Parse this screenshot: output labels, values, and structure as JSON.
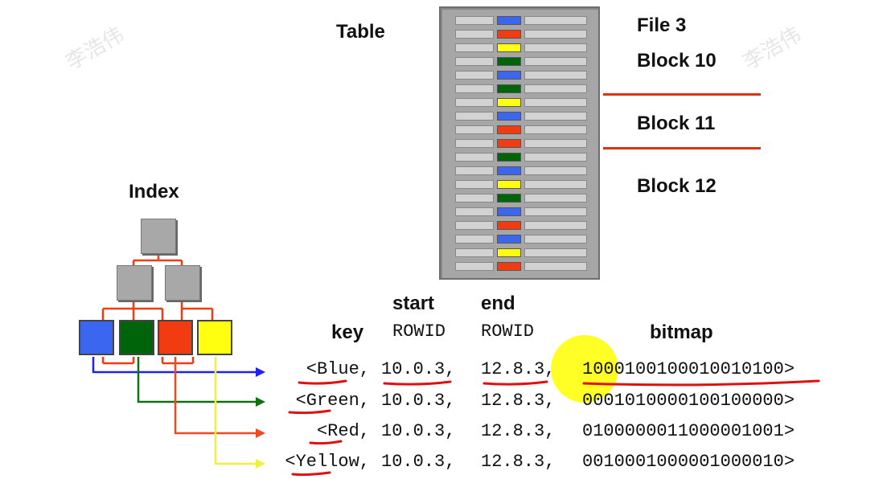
{
  "watermarks": [
    "李浩伟",
    "李浩伟"
  ],
  "labels": {
    "table": "Table",
    "index": "Index",
    "file": "File 3",
    "block10": "Block 10",
    "block11": "Block 11",
    "block12": "Block 12"
  },
  "headers": {
    "key": "key",
    "start_top": "start",
    "start_bottom": "ROWID",
    "end_top": "end",
    "end_bottom": "ROWID",
    "bitmap": "bitmap"
  },
  "colors": {
    "blue": "#3a66f0",
    "red": "#f03c10",
    "yellow": "#ffff10",
    "green": "#00650a",
    "grey": "#a8a8a8"
  },
  "table_rows": [
    "blue",
    "red",
    "yellow",
    "green",
    "blue",
    "green",
    "yellow",
    "blue",
    "red",
    "red",
    "green",
    "blue",
    "yellow",
    "green",
    "blue",
    "red",
    "blue",
    "yellow",
    "red"
  ],
  "entries": [
    {
      "key": "<Blue",
      "start": "10.0.3",
      "end": "12.8.3",
      "bitmap": "1000100100010010100>",
      "color": "#2020f0"
    },
    {
      "key": "<Green",
      "start": "10.0.3",
      "end": "12.8.3",
      "bitmap": "0001010000100100000>",
      "color": "#107010"
    },
    {
      "key": "<Red",
      "start": "10.0.3",
      "end": "12.8.3",
      "bitmap": "0100000011000001001>",
      "color": "#f04a20"
    },
    {
      "key": "<Yellow",
      "start": "10.0.3",
      "end": "12.8.3",
      "bitmap": "0010001000001000010>",
      "color": "#f0f040"
    }
  ]
}
